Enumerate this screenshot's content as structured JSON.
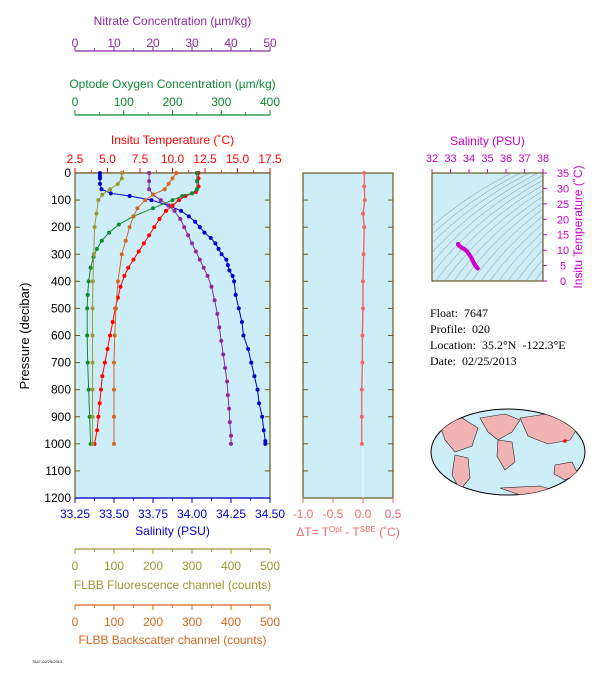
{
  "colors": {
    "nitrate": "#8b2b9b",
    "oxygen": "#118833",
    "temperature": "#ff0000",
    "salinity": "#0000cc",
    "fluorescence": "#999933",
    "backscatter": "#d4681e",
    "dt": "#f06a6a",
    "inset": "#cc00cc",
    "panel_bg": "#cdeef8",
    "frame": "#6b5a1e",
    "land": "#f2b3b3"
  },
  "metadata": {
    "float": "Float:  7647",
    "profile": "Profile:  020",
    "location": "Location:  35.2°N  -122.3°E",
    "date": "Date:  02/25/2013",
    "stamp": "7647-02/25/2013"
  },
  "chart_data": [
    {
      "type": "line",
      "title": "",
      "ylabel": "Pressure (decibar)",
      "yticks": [
        "0",
        "100",
        "200",
        "300",
        "400",
        "500",
        "600",
        "700",
        "800",
        "900",
        "1000",
        "1100",
        "1200"
      ],
      "ylim": [
        1200,
        0
      ],
      "axes": {
        "nitrate": {
          "label": "Nitrate Concentration (µm/kg)",
          "ticks": [
            "0",
            "10",
            "20",
            "30",
            "40",
            "50"
          ],
          "range": [
            0,
            50
          ]
        },
        "oxygen": {
          "label": "Optode Oxygen Concentration (µm/kg)",
          "ticks": [
            "0",
            "100",
            "200",
            "300",
            "400"
          ],
          "range": [
            0,
            400
          ]
        },
        "temperature": {
          "label": "Insitu Temperature (˚C)",
          "ticks": [
            "2.5",
            "5.0",
            "7.5",
            "10.0",
            "12.5",
            "15.0",
            "17.5"
          ],
          "range": [
            2.5,
            17.5
          ]
        },
        "salinity": {
          "label": "Salinity (PSU)",
          "ticks": [
            "33.25",
            "33.50",
            "33.75",
            "34.00",
            "34.25",
            "34.50"
          ],
          "range": [
            33.25,
            34.5
          ]
        },
        "fluorescence": {
          "label": "FLBB Fluorescence channel (counts)",
          "ticks": [
            "0",
            "100",
            "200",
            "300",
            "400",
            "500"
          ],
          "range": [
            0,
            500
          ]
        },
        "backscatter": {
          "label": "FLBB Backscatter channel (counts)",
          "ticks": [
            "0",
            "100",
            "200",
            "300",
            "400",
            "500"
          ],
          "range": [
            0,
            500
          ]
        }
      },
      "series": [
        {
          "name": "Salinity",
          "axis": "salinity",
          "points": [
            [
              33.41,
              0
            ],
            [
              33.41,
              10
            ],
            [
              33.41,
              20
            ],
            [
              33.41,
              40
            ],
            [
              33.42,
              60
            ],
            [
              33.48,
              75
            ],
            [
              33.6,
              85
            ],
            [
              33.74,
              100
            ],
            [
              33.85,
              120
            ],
            [
              33.93,
              140
            ],
            [
              33.98,
              160
            ],
            [
              34.02,
              180
            ],
            [
              34.05,
              200
            ],
            [
              34.08,
              220
            ],
            [
              34.12,
              240
            ],
            [
              34.15,
              260
            ],
            [
              34.17,
              280
            ],
            [
              34.19,
              300
            ],
            [
              34.22,
              320
            ],
            [
              34.23,
              340
            ],
            [
              34.24,
              360
            ],
            [
              34.26,
              380
            ],
            [
              34.27,
              400
            ],
            [
              34.28,
              450
            ],
            [
              34.3,
              500
            ],
            [
              34.32,
              550
            ],
            [
              34.33,
              600
            ],
            [
              34.36,
              650
            ],
            [
              34.38,
              700
            ],
            [
              34.4,
              750
            ],
            [
              34.42,
              800
            ],
            [
              34.43,
              850
            ],
            [
              34.45,
              900
            ],
            [
              34.46,
              950
            ],
            [
              34.47,
              990
            ],
            [
              34.47,
              1000
            ]
          ]
        },
        {
          "name": "Nitrate",
          "axis": "nitrate",
          "points": [
            [
              19,
              0
            ],
            [
              19,
              30
            ],
            [
              19,
              60
            ],
            [
              20,
              80
            ],
            [
              22,
              100
            ],
            [
              24,
              120
            ],
            [
              25.5,
              140
            ],
            [
              27,
              170
            ],
            [
              28,
              200
            ],
            [
              29,
              230
            ],
            [
              30,
              260
            ],
            [
              31,
              290
            ],
            [
              32,
              320
            ],
            [
              33,
              350
            ],
            [
              34,
              380
            ],
            [
              35,
              420
            ],
            [
              35.8,
              470
            ],
            [
              36.5,
              520
            ],
            [
              37,
              570
            ],
            [
              37.5,
              620
            ],
            [
              38,
              670
            ],
            [
              38.5,
              720
            ],
            [
              39,
              770
            ],
            [
              39.2,
              820
            ],
            [
              39.5,
              870
            ],
            [
              39.7,
              920
            ],
            [
              40,
              970
            ],
            [
              40,
              1000
            ]
          ]
        },
        {
          "name": "Temperature",
          "axis": "temperature",
          "points": [
            [
              12.0,
              0
            ],
            [
              12.0,
              20
            ],
            [
              12.0,
              50
            ],
            [
              11.8,
              70
            ],
            [
              11.0,
              85
            ],
            [
              10.5,
              100
            ],
            [
              10.0,
              120
            ],
            [
              9.5,
              140
            ],
            [
              9.0,
              170
            ],
            [
              8.6,
              200
            ],
            [
              8.2,
              230
            ],
            [
              7.8,
              260
            ],
            [
              7.4,
              290
            ],
            [
              7.0,
              320
            ],
            [
              6.6,
              350
            ],
            [
              6.3,
              380
            ],
            [
              6.0,
              420
            ],
            [
              5.8,
              460
            ],
            [
              5.6,
              500
            ],
            [
              5.4,
              550
            ],
            [
              5.2,
              600
            ],
            [
              5.0,
              650
            ],
            [
              4.8,
              700
            ],
            [
              4.6,
              750
            ],
            [
              4.5,
              800
            ],
            [
              4.4,
              850
            ],
            [
              4.3,
              900
            ],
            [
              4.2,
              950
            ],
            [
              4.0,
              1000
            ]
          ]
        },
        {
          "name": "Oxygen",
          "axis": "oxygen",
          "points": [
            [
              250,
              0
            ],
            [
              250,
              30
            ],
            [
              250,
              60
            ],
            [
              240,
              75
            ],
            [
              220,
              85
            ],
            [
              200,
              100
            ],
            [
              160,
              130
            ],
            [
              120,
              160
            ],
            [
              90,
              190
            ],
            [
              70,
              220
            ],
            [
              55,
              250
            ],
            [
              45,
              280
            ],
            [
              38,
              310
            ],
            [
              32,
              350
            ],
            [
              28,
              400
            ],
            [
              26,
              450
            ],
            [
              25,
              500
            ],
            [
              25,
              600
            ],
            [
              26,
              700
            ],
            [
              28,
              800
            ],
            [
              30,
              900
            ],
            [
              32,
              1000
            ]
          ]
        },
        {
          "name": "Fluorescence",
          "axis": "fluorescence",
          "points": [
            [
              120,
              0
            ],
            [
              120,
              20
            ],
            [
              110,
              40
            ],
            [
              90,
              60
            ],
            [
              70,
              80
            ],
            [
              60,
              100
            ],
            [
              55,
              150
            ],
            [
              50,
              200
            ],
            [
              48,
              300
            ],
            [
              46,
              400
            ],
            [
              45,
              500
            ],
            [
              45,
              600
            ],
            [
              45,
              700
            ],
            [
              45,
              800
            ],
            [
              45,
              900
            ],
            [
              45,
              1000
            ]
          ]
        },
        {
          "name": "Backscatter",
          "axis": "backscatter",
          "points": [
            [
              260,
              0
            ],
            [
              250,
              20
            ],
            [
              240,
              40
            ],
            [
              230,
              60
            ],
            [
              200,
              80
            ],
            [
              180,
              100
            ],
            [
              160,
              130
            ],
            [
              150,
              160
            ],
            [
              140,
              200
            ],
            [
              130,
              250
            ],
            [
              120,
              300
            ],
            [
              110,
              400
            ],
            [
              105,
              500
            ],
            [
              102,
              600
            ],
            [
              100,
              700
            ],
            [
              100,
              800
            ],
            [
              100,
              900
            ],
            [
              100,
              1000
            ]
          ]
        }
      ]
    },
    {
      "type": "line",
      "xlabel": "ΔT= T^Opt - T^SBE (˚C)",
      "xticks": [
        "-1.0",
        "-0.5",
        "0.0",
        "0.5"
      ],
      "xlim": [
        -1.0,
        0.5
      ],
      "ylim": [
        1200,
        0
      ],
      "series": [
        {
          "name": "dT",
          "points": [
            [
              0.02,
              0
            ],
            [
              0.02,
              50
            ],
            [
              0.03,
              100
            ],
            [
              0.0,
              150
            ],
            [
              0.02,
              200
            ],
            [
              0.01,
              300
            ],
            [
              0.0,
              400
            ],
            [
              0.0,
              500
            ],
            [
              -0.01,
              600
            ],
            [
              -0.01,
              700
            ],
            [
              -0.02,
              800
            ],
            [
              -0.02,
              900
            ],
            [
              -0.02,
              1000
            ]
          ]
        }
      ]
    },
    {
      "type": "scatter",
      "title": "Salinity (PSU)",
      "xticks": [
        "32",
        "33",
        "34",
        "35",
        "36",
        "37",
        "38"
      ],
      "xlim": [
        32,
        38
      ],
      "ylabel": "Insitu Temperature (˚C)",
      "yticks": [
        "0",
        "5",
        "10",
        "15",
        "20",
        "25",
        "30",
        "35"
      ],
      "ylim": [
        0,
        35
      ],
      "series": [
        {
          "name": "T-S",
          "points": [
            [
              33.41,
              12.0
            ],
            [
              33.45,
              11.5
            ],
            [
              33.6,
              10.8
            ],
            [
              33.75,
              10.3
            ],
            [
              33.9,
              9.6
            ],
            [
              34.0,
              8.7
            ],
            [
              34.08,
              8.0
            ],
            [
              34.15,
              7.2
            ],
            [
              34.2,
              6.6
            ],
            [
              34.25,
              6.0
            ],
            [
              34.3,
              5.4
            ],
            [
              34.35,
              5.0
            ],
            [
              34.4,
              4.6
            ],
            [
              34.47,
              4.1
            ]
          ]
        }
      ]
    }
  ]
}
